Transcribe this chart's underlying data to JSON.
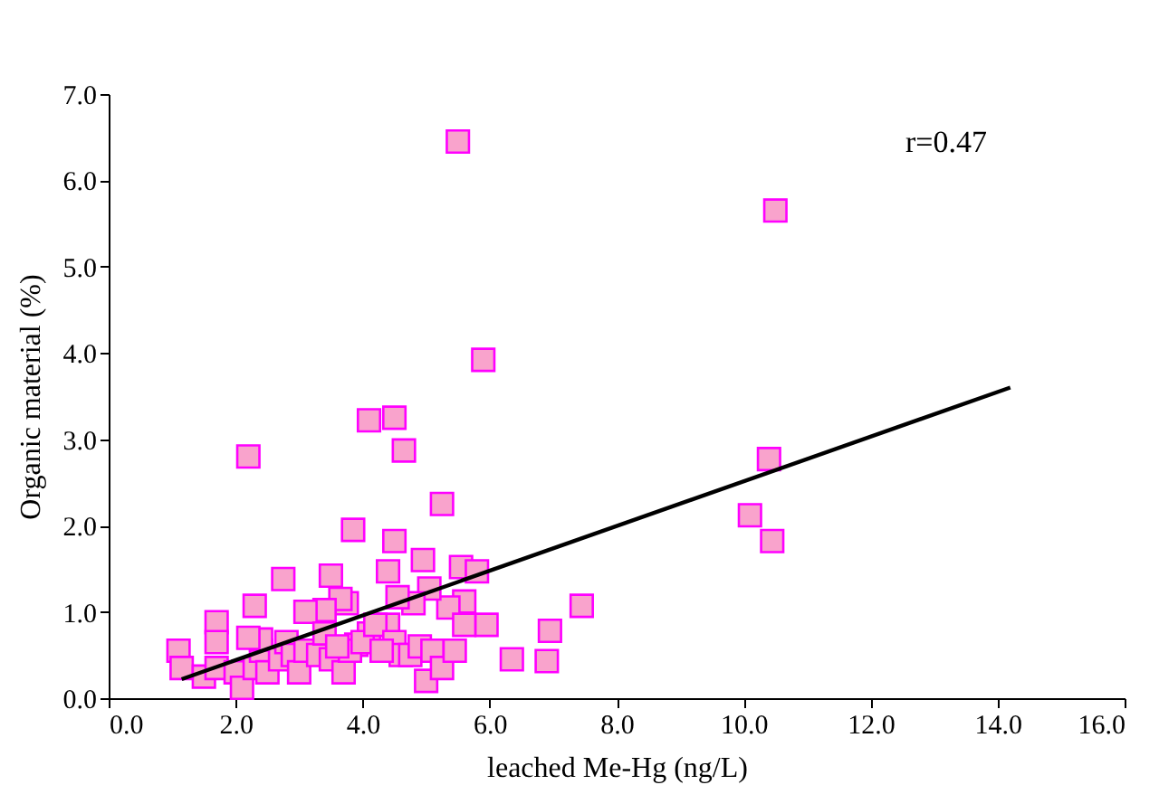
{
  "chart_data": {
    "type": "scatter",
    "xlabel": "leached Me-Hg (ng/L)",
    "ylabel": "Organic material (%)",
    "xlim": [
      0,
      16
    ],
    "ylim": [
      0,
      7
    ],
    "xticks": [
      {
        "value": 0,
        "label": "0.0"
      },
      {
        "value": 2,
        "label": "2.0"
      },
      {
        "value": 4,
        "label": "4.0"
      },
      {
        "value": 6,
        "label": "6.0"
      },
      {
        "value": 8,
        "label": "8.0"
      },
      {
        "value": 10,
        "label": "10.0"
      },
      {
        "value": 12,
        "label": "12.0"
      },
      {
        "value": 14,
        "label": "14.0"
      },
      {
        "value": 16,
        "label": "16.0"
      }
    ],
    "yticks": [
      {
        "value": 0,
        "label": "0.0"
      },
      {
        "value": 1,
        "label": "1.0"
      },
      {
        "value": 2,
        "label": "2.0"
      },
      {
        "value": 3,
        "label": "3.0"
      },
      {
        "value": 4,
        "label": "4.0"
      },
      {
        "value": 5,
        "label": "5.0"
      },
      {
        "value": 6,
        "label": "6.0"
      },
      {
        "value": 7,
        "label": "7.0"
      }
    ],
    "grid": false,
    "annotations": [
      "r=0.47"
    ],
    "series": [
      {
        "marker": "square",
        "color": "#f9a3cc",
        "x": [
          5.5,
          10.5,
          5.9,
          4.5,
          4.1,
          2.2,
          4.65,
          10.4,
          5.25,
          10.1,
          3.85,
          10.45,
          4.5,
          5.55,
          5.8,
          3.5,
          2.75,
          4.4,
          4.95,
          7.45,
          6.95,
          6.35,
          6.9,
          5.95,
          5.6,
          5.35,
          5.05,
          4.8,
          4.55,
          4.4,
          4.1,
          3.9,
          3.75,
          3.65,
          3.4,
          3.1,
          2.3,
          1.7,
          1.7,
          1.1,
          1.15,
          1.5,
          1.7,
          2.0,
          2.1,
          2.3,
          2.4,
          2.4,
          2.5,
          2.7,
          2.8,
          2.9,
          3.0,
          3.1,
          3.3,
          3.4,
          3.5,
          3.7,
          3.8,
          4.0,
          4.2,
          4.5,
          4.6,
          4.75,
          4.9,
          5.0,
          5.1,
          5.25,
          5.45,
          5.6,
          2.2,
          3.6,
          4.3
        ],
        "values": [
          6.45,
          5.65,
          3.92,
          3.25,
          3.22,
          2.8,
          2.87,
          2.77,
          2.25,
          2.12,
          1.95,
          1.82,
          1.82,
          1.52,
          1.47,
          1.42,
          1.38,
          1.47,
          1.6,
          1.07,
          0.78,
          0.45,
          0.43,
          0.85,
          1.12,
          1.05,
          1.27,
          1.1,
          1.17,
          0.85,
          0.75,
          0.62,
          1.1,
          1.15,
          1.02,
          1.0,
          1.07,
          0.88,
          0.65,
          0.55,
          0.35,
          0.25,
          0.35,
          0.3,
          0.12,
          0.35,
          0.55,
          0.68,
          0.3,
          0.45,
          0.65,
          0.5,
          0.3,
          0.55,
          0.5,
          0.75,
          0.45,
          0.3,
          0.55,
          0.65,
          0.85,
          0.65,
          0.5,
          0.5,
          0.6,
          0.2,
          0.55,
          0.35,
          0.55,
          0.85,
          0.7,
          0.6,
          0.55
        ]
      },
      {
        "type": "line",
        "color": "#000000",
        "x": [
          1.15,
          14.2
        ],
        "values": [
          0.22,
          3.6
        ]
      }
    ]
  }
}
